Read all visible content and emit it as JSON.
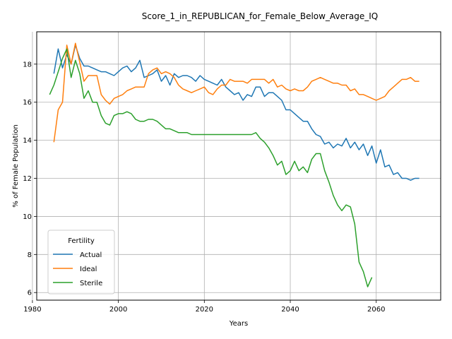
{
  "chart_data": {
    "type": "line",
    "title": "Score_1_in_REPUBLICAN_for_Female_Below_Average_IQ",
    "xlabel": "Years",
    "ylabel": "% of Female Population",
    "xlim": [
      1981,
      2075
    ],
    "ylim": [
      5.6,
      19.7
    ],
    "xticks": [
      1980,
      2000,
      2020,
      2040,
      2060
    ],
    "yticks": [
      6,
      8,
      10,
      12,
      14,
      16,
      18
    ],
    "grid": true,
    "legend": {
      "title": "Fertility",
      "placement": "lower-left"
    },
    "series": [
      {
        "name": "Actual",
        "color": "#1f77b4",
        "x": [
          1985,
          1986,
          1987,
          1988,
          1989,
          1990,
          1991,
          1992,
          1993,
          1994,
          1995,
          1996,
          1997,
          1998,
          1999,
          2000,
          2001,
          2002,
          2003,
          2004,
          2005,
          2006,
          2007,
          2008,
          2009,
          2010,
          2011,
          2012,
          2013,
          2014,
          2015,
          2016,
          2017,
          2018,
          2019,
          2020,
          2021,
          2022,
          2023,
          2024,
          2025,
          2026,
          2027,
          2028,
          2029,
          2030,
          2031,
          2032,
          2033,
          2034,
          2035,
          2036,
          2037,
          2038,
          2039,
          2040,
          2041,
          2042,
          2043,
          2044,
          2045,
          2046,
          2047,
          2048,
          2049,
          2050,
          2051,
          2052,
          2053,
          2054,
          2055,
          2056,
          2057,
          2058,
          2059,
          2060,
          2061,
          2062,
          2063,
          2064,
          2065,
          2066,
          2067,
          2068,
          2069,
          2070
        ],
        "y": [
          17.5,
          18.8,
          17.8,
          18.5,
          18.0,
          19.0,
          18.3,
          17.9,
          17.9,
          17.8,
          17.7,
          17.6,
          17.6,
          17.5,
          17.4,
          17.6,
          17.8,
          17.9,
          17.6,
          17.8,
          18.2,
          17.3,
          17.4,
          17.5,
          17.7,
          17.1,
          17.4,
          16.9,
          17.5,
          17.3,
          17.4,
          17.4,
          17.3,
          17.1,
          17.4,
          17.2,
          17.1,
          17.0,
          16.9,
          17.2,
          16.8,
          16.6,
          16.4,
          16.5,
          16.1,
          16.4,
          16.3,
          16.8,
          16.8,
          16.3,
          16.5,
          16.5,
          16.3,
          16.1,
          15.6,
          15.6,
          15.4,
          15.2,
          15.0,
          15.0,
          14.6,
          14.3,
          14.2,
          13.8,
          13.9,
          13.6,
          13.8,
          13.7,
          14.1,
          13.6,
          13.9,
          13.5,
          13.8,
          13.2,
          13.7,
          12.8,
          13.5,
          12.6,
          12.7,
          12.2,
          12.3,
          12.0,
          12.0,
          11.9,
          12.0,
          12.0
        ]
      },
      {
        "name": "Ideal",
        "color": "#ff7f0e",
        "x": [
          1985,
          1986,
          1987,
          1988,
          1989,
          1990,
          1991,
          1992,
          1993,
          1994,
          1995,
          1996,
          1997,
          1998,
          1999,
          2000,
          2001,
          2002,
          2003,
          2004,
          2005,
          2006,
          2007,
          2008,
          2009,
          2010,
          2011,
          2012,
          2013,
          2014,
          2015,
          2016,
          2017,
          2018,
          2019,
          2020,
          2021,
          2022,
          2023,
          2024,
          2025,
          2026,
          2027,
          2028,
          2029,
          2030,
          2031,
          2032,
          2033,
          2034,
          2035,
          2036,
          2037,
          2038,
          2039,
          2040,
          2041,
          2042,
          2043,
          2044,
          2045,
          2046,
          2047,
          2048,
          2049,
          2050,
          2051,
          2052,
          2053,
          2054,
          2055,
          2056,
          2057,
          2058,
          2059,
          2060,
          2061,
          2062,
          2063,
          2064,
          2065,
          2066,
          2067,
          2068,
          2069,
          2070
        ],
        "y": [
          13.9,
          15.6,
          16.0,
          19.0,
          18.0,
          19.1,
          18.1,
          17.1,
          17.4,
          17.4,
          17.4,
          16.4,
          16.1,
          15.9,
          16.2,
          16.3,
          16.4,
          16.6,
          16.7,
          16.8,
          16.8,
          16.8,
          17.5,
          17.7,
          17.8,
          17.5,
          17.6,
          17.5,
          17.3,
          16.9,
          16.7,
          16.6,
          16.5,
          16.6,
          16.7,
          16.8,
          16.5,
          16.4,
          16.7,
          16.9,
          16.9,
          17.2,
          17.1,
          17.1,
          17.1,
          17.0,
          17.2,
          17.2,
          17.2,
          17.2,
          17.0,
          17.2,
          16.8,
          16.9,
          16.7,
          16.6,
          16.7,
          16.6,
          16.6,
          16.8,
          17.1,
          17.2,
          17.3,
          17.2,
          17.1,
          17.0,
          17.0,
          16.9,
          16.9,
          16.6,
          16.7,
          16.4,
          16.4,
          16.3,
          16.2,
          16.1,
          16.2,
          16.3,
          16.6,
          16.8,
          17.0,
          17.2,
          17.2,
          17.3,
          17.1,
          17.1
        ]
      },
      {
        "name": "Sterile",
        "color": "#2ca02c",
        "x": [
          1984,
          1985,
          1986,
          1987,
          1988,
          1989,
          1990,
          1991,
          1992,
          1993,
          1994,
          1995,
          1996,
          1997,
          1998,
          1999,
          2000,
          2001,
          2002,
          2003,
          2004,
          2005,
          2006,
          2007,
          2008,
          2009,
          2010,
          2011,
          2012,
          2013,
          2014,
          2015,
          2016,
          2017,
          2018,
          2019,
          2020,
          2021,
          2022,
          2023,
          2024,
          2025,
          2026,
          2027,
          2028,
          2029,
          2030,
          2031,
          2032,
          2033,
          2034,
          2035,
          2036,
          2037,
          2038,
          2039,
          2040,
          2041,
          2042,
          2043,
          2044,
          2045,
          2046,
          2047,
          2048,
          2049,
          2050,
          2051,
          2052,
          2053,
          2054,
          2055,
          2056,
          2057,
          2058,
          2059
        ],
        "y": [
          16.4,
          16.9,
          17.6,
          18.3,
          18.8,
          17.3,
          18.2,
          17.5,
          16.2,
          16.6,
          16.0,
          16.0,
          15.3,
          14.9,
          14.8,
          15.3,
          15.4,
          15.4,
          15.5,
          15.4,
          15.1,
          15.0,
          15.0,
          15.1,
          15.1,
          15.0,
          14.8,
          14.6,
          14.6,
          14.5,
          14.4,
          14.4,
          14.4,
          14.3,
          14.3,
          14.3,
          14.3,
          14.3,
          14.3,
          14.3,
          14.3,
          14.3,
          14.3,
          14.3,
          14.3,
          14.3,
          14.3,
          14.3,
          14.4,
          14.1,
          13.9,
          13.6,
          13.2,
          12.7,
          12.9,
          12.2,
          12.4,
          12.9,
          12.4,
          12.6,
          12.3,
          13.0,
          13.3,
          13.3,
          12.4,
          11.8,
          11.1,
          10.6,
          10.3,
          10.6,
          10.5,
          9.6,
          7.6,
          7.1,
          6.3,
          6.8
        ]
      }
    ]
  }
}
